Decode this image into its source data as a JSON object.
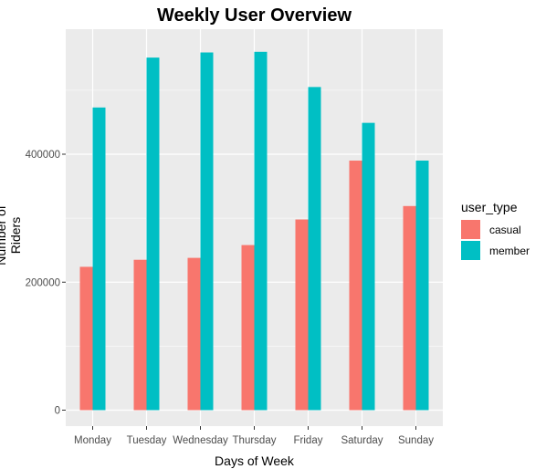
{
  "chart_data": {
    "type": "bar",
    "title": "Weekly User Overview",
    "xlabel": "Days of Week",
    "ylabel": "Number of Riders",
    "categories": [
      "Monday",
      "Tuesday",
      "Wednesday",
      "Thursday",
      "Friday",
      "Saturday",
      "Sunday"
    ],
    "series": [
      {
        "name": "casual",
        "color": "#F8766D",
        "values": [
          224000,
          235000,
          238000,
          258000,
          298000,
          390000,
          319000
        ]
      },
      {
        "name": "member",
        "color": "#00BFC4",
        "values": [
          473000,
          551000,
          559000,
          560000,
          505000,
          449000,
          390000
        ]
      }
    ],
    "yticks": [
      0,
      200000,
      400000
    ],
    "ytick_labels": [
      "0",
      "200000",
      "400000"
    ],
    "ylim": [
      0,
      590000
    ],
    "legend": {
      "title": "user_type",
      "position": "right"
    },
    "grid": true,
    "background": "#EBEBEB"
  }
}
